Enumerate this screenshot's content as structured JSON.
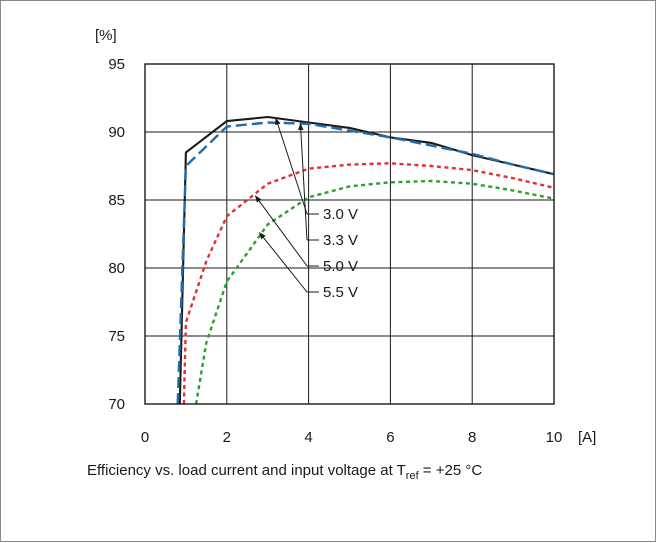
{
  "chart_data": {
    "type": "line",
    "title": "",
    "xlabel": "[A]",
    "ylabel": "[%]",
    "xlim": [
      0,
      10
    ],
    "ylim": [
      70,
      95
    ],
    "grid": true,
    "x_ticks": [
      "0",
      "2",
      "4",
      "6",
      "8",
      "10"
    ],
    "y_ticks": [
      "70",
      "75",
      "80",
      "85",
      "90",
      "95"
    ],
    "series": [
      {
        "name": "3.0 V",
        "color": "#1a1a1a",
        "style": "solid",
        "points": [
          [
            0.85,
            70
          ],
          [
            1.0,
            88.5
          ],
          [
            2.0,
            90.8
          ],
          [
            3.0,
            91.1
          ],
          [
            4.0,
            90.7
          ],
          [
            5.0,
            90.3
          ],
          [
            6.0,
            89.6
          ],
          [
            7.0,
            89.2
          ],
          [
            8.0,
            88.3
          ],
          [
            9.0,
            87.6
          ],
          [
            10.0,
            86.9
          ]
        ]
      },
      {
        "name": "3.3 V",
        "color": "#1f6db0",
        "style": "dashed",
        "points": [
          [
            0.8,
            70
          ],
          [
            1.0,
            87.5
          ],
          [
            2.0,
            90.4
          ],
          [
            3.0,
            90.7
          ],
          [
            4.0,
            90.6
          ],
          [
            5.0,
            90.1
          ],
          [
            6.0,
            89.6
          ],
          [
            7.0,
            89.0
          ],
          [
            8.0,
            88.4
          ],
          [
            9.0,
            87.6
          ],
          [
            10.0,
            86.9
          ]
        ]
      },
      {
        "name": "5.0 V",
        "color": "#e03030",
        "style": "dotted",
        "points": [
          [
            0.95,
            70
          ],
          [
            1.0,
            76.0
          ],
          [
            1.5,
            80.5
          ],
          [
            2.0,
            83.8
          ],
          [
            3.0,
            86.2
          ],
          [
            4.0,
            87.3
          ],
          [
            5.0,
            87.6
          ],
          [
            6.0,
            87.7
          ],
          [
            7.0,
            87.5
          ],
          [
            8.0,
            87.2
          ],
          [
            9.0,
            86.6
          ],
          [
            10.0,
            85.9
          ]
        ]
      },
      {
        "name": "5.5 V",
        "color": "#2ca02c",
        "style": "dotted",
        "points": [
          [
            1.25,
            70
          ],
          [
            1.5,
            74.5
          ],
          [
            2.0,
            79.0
          ],
          [
            3.0,
            83.2
          ],
          [
            4.0,
            85.2
          ],
          [
            5.0,
            86.0
          ],
          [
            6.0,
            86.3
          ],
          [
            7.0,
            86.4
          ],
          [
            8.0,
            86.2
          ],
          [
            9.0,
            85.7
          ],
          [
            10.0,
            85.1
          ]
        ]
      }
    ],
    "annotations": [
      {
        "text": "3.0 V",
        "arrow_to": [
          3.2,
          91.0
        ]
      },
      {
        "text": "3.3 V",
        "arrow_to": [
          3.8,
          90.6
        ]
      },
      {
        "text": "5.0 V",
        "arrow_to": [
          2.7,
          85.3
        ]
      },
      {
        "text": "5.5 V",
        "arrow_to": [
          2.8,
          82.6
        ]
      }
    ]
  },
  "caption": {
    "prefix": "Efficiency vs. load current and input voltage at T",
    "subscript": "ref",
    "suffix": " = +25 °C"
  }
}
